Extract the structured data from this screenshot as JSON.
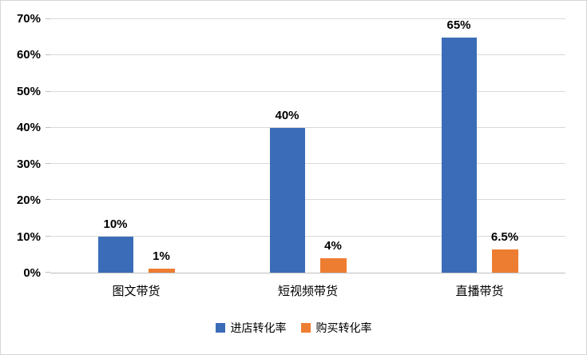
{
  "chart_data": {
    "type": "bar",
    "title": "",
    "categories": [
      "图文带货",
      "短视频带货",
      "直播带货"
    ],
    "series": [
      {
        "name": "进店转化率",
        "color": "#3b6cb8",
        "values": [
          10,
          40,
          65
        ],
        "labels": [
          "10%",
          "40%",
          "65%"
        ]
      },
      {
        "name": "购买转化率",
        "color": "#ed7d31",
        "values": [
          1,
          4,
          6.5
        ],
        "labels": [
          "1%",
          "4%",
          "6.5%"
        ]
      }
    ],
    "y_ticks": [
      "0%",
      "10%",
      "20%",
      "30%",
      "40%",
      "50%",
      "60%",
      "70%"
    ],
    "ylim": [
      0,
      70
    ],
    "grid": true,
    "legend_position": "bottom",
    "colors": {
      "gridline": "#d9d9d9",
      "axis": "#bfbfbf",
      "border": "#d6d6d6",
      "text": "#000000"
    }
  }
}
